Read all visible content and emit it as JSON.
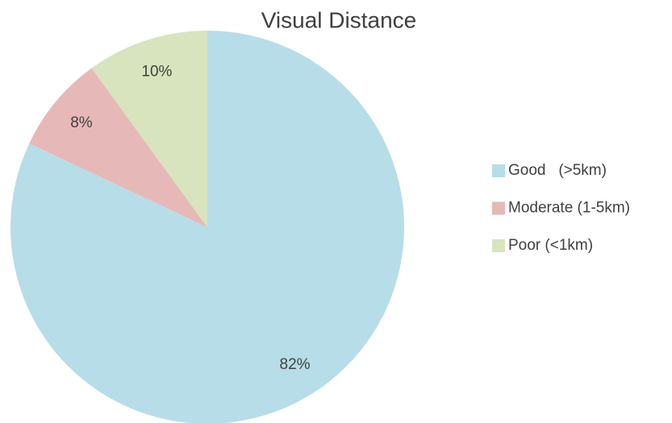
{
  "chart_data": {
    "type": "pie",
    "title": "Visual Distance",
    "categories": [
      "Good   (>5km)",
      "Moderate (1-5km)",
      "Poor (<1km)"
    ],
    "values": [
      82,
      8,
      10
    ],
    "value_labels": [
      "82%",
      "8%",
      "10%"
    ],
    "colors": [
      "#b7dde8",
      "#e6b9b8",
      "#d7e4bd"
    ],
    "legend": "right"
  }
}
